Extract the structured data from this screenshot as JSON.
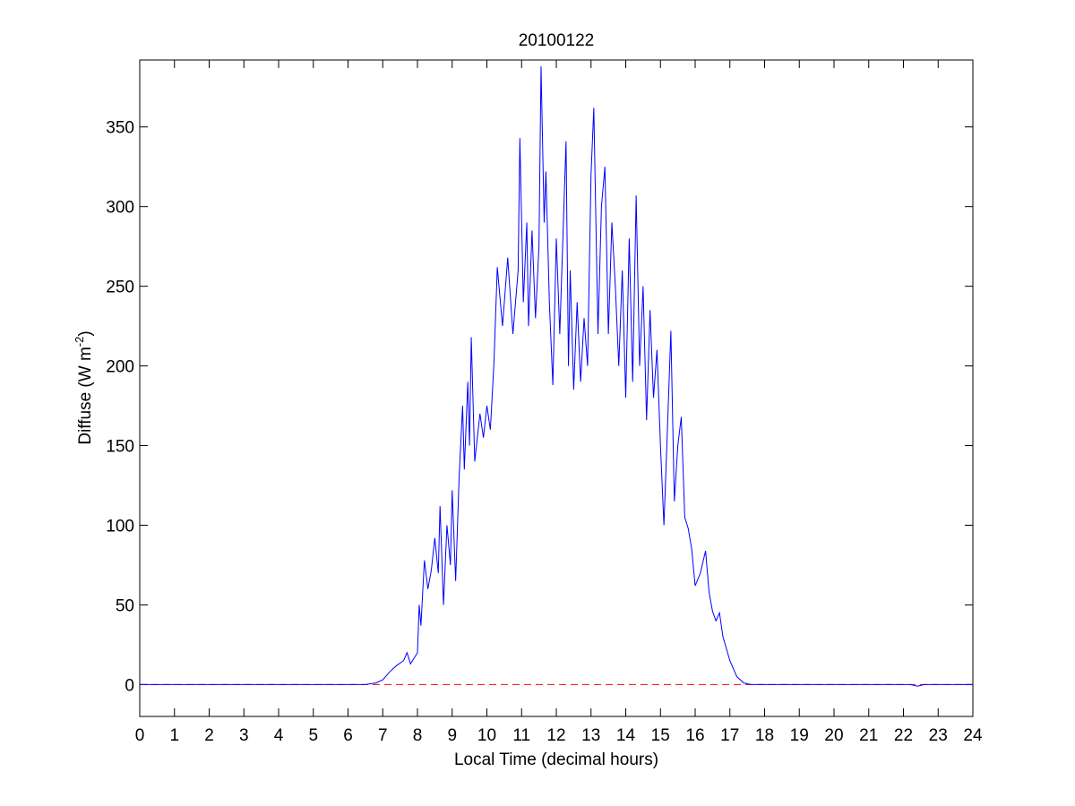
{
  "chart_data": {
    "type": "line",
    "title": "20100122",
    "xlabel": "Local Time (decimal hours)",
    "ylabel": [
      "Diffuse (W m",
      "-2",
      ")"
    ],
    "x": [
      0,
      6,
      6.5,
      6.8,
      7.0,
      7.2,
      7.4,
      7.6,
      7.7,
      7.8,
      8.0,
      8.05,
      8.1,
      8.2,
      8.3,
      8.4,
      8.5,
      8.6,
      8.65,
      8.75,
      8.85,
      8.95,
      9.0,
      9.1,
      9.2,
      9.3,
      9.35,
      9.45,
      9.5,
      9.55,
      9.65,
      9.8,
      9.9,
      10.0,
      10.1,
      10.2,
      10.3,
      10.45,
      10.6,
      10.75,
      10.9,
      10.95,
      11.05,
      11.15,
      11.2,
      11.3,
      11.4,
      11.5,
      11.56,
      11.65,
      11.7,
      11.8,
      11.9,
      12.0,
      12.1,
      12.28,
      12.35,
      12.4,
      12.5,
      12.6,
      12.7,
      12.8,
      12.9,
      13.0,
      13.08,
      13.2,
      13.3,
      13.4,
      13.5,
      13.6,
      13.7,
      13.8,
      13.9,
      14.0,
      14.1,
      14.2,
      14.3,
      14.4,
      14.5,
      14.6,
      14.7,
      14.8,
      14.9,
      15.0,
      15.1,
      15.2,
      15.3,
      15.4,
      15.5,
      15.6,
      15.7,
      15.8,
      15.9,
      16.0,
      16.15,
      16.3,
      16.4,
      16.5,
      16.6,
      16.7,
      16.8,
      17.0,
      17.2,
      17.4,
      17.6,
      22.2,
      22.4,
      22.6,
      24
    ],
    "series": [
      {
        "color": "#0000ff",
        "values": [
          0,
          0,
          0,
          1,
          3,
          8,
          12,
          15,
          20,
          13,
          20,
          50,
          37,
          78,
          60,
          72,
          92,
          70,
          112,
          50,
          100,
          75,
          122,
          65,
          130,
          175,
          135,
          190,
          150,
          218,
          140,
          170,
          155,
          175,
          160,
          200,
          262,
          225,
          268,
          220,
          260,
          343,
          240,
          290,
          225,
          285,
          230,
          275,
          388,
          290,
          322,
          240,
          188,
          280,
          220,
          341,
          200,
          260,
          185,
          240,
          190,
          230,
          200,
          320,
          362,
          220,
          300,
          325,
          220,
          290,
          250,
          200,
          260,
          180,
          280,
          190,
          307,
          200,
          250,
          166,
          235,
          180,
          210,
          150,
          100,
          160,
          222,
          115,
          150,
          168,
          105,
          98,
          85,
          62,
          70,
          84,
          58,
          46,
          40,
          45,
          30,
          15,
          5,
          1,
          0,
          0,
          -1,
          0,
          0
        ]
      }
    ],
    "hline": {
      "y": 0,
      "color": "#ff0000",
      "dashed": true
    },
    "xlim": [
      0,
      24
    ],
    "xticks": [
      0,
      1,
      2,
      3,
      4,
      5,
      6,
      7,
      8,
      9,
      10,
      11,
      12,
      13,
      14,
      15,
      16,
      17,
      18,
      19,
      20,
      21,
      22,
      23,
      24
    ],
    "ylim": [
      -20,
      392
    ],
    "yticks": [
      0,
      50,
      100,
      150,
      200,
      250,
      300,
      350
    ]
  }
}
